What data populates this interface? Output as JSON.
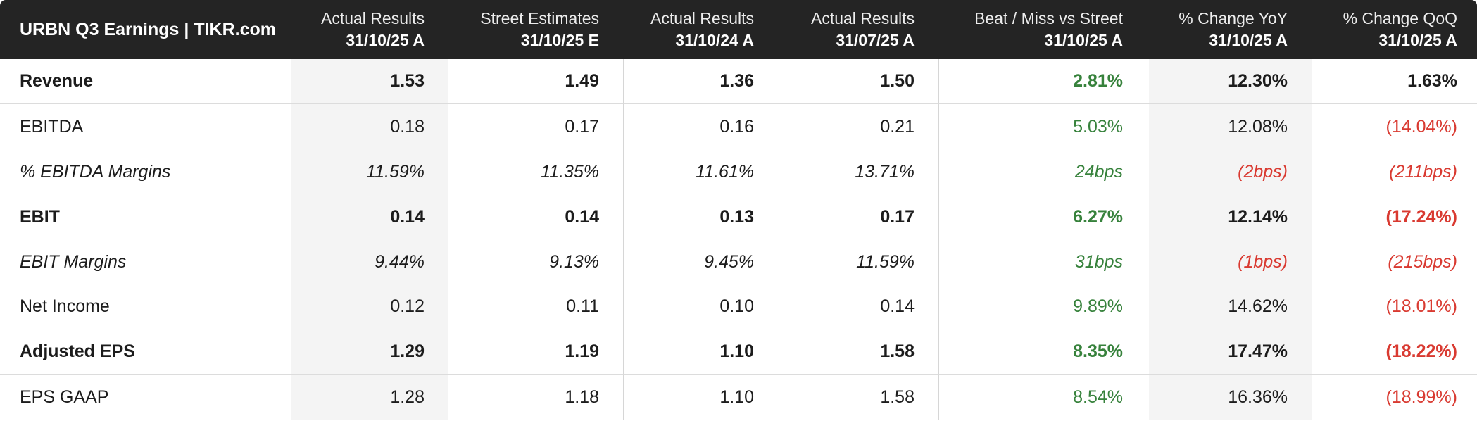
{
  "title": "URBN Q3 Earnings | TIKR.com",
  "columns": [
    {
      "label": "Actual Results",
      "date": "31/10/25 A"
    },
    {
      "label": "Street Estimates",
      "date": "31/10/25 E"
    },
    {
      "label": "Actual Results",
      "date": "31/10/24 A"
    },
    {
      "label": "Actual Results",
      "date": "31/07/25 A"
    },
    {
      "label": "Beat / Miss vs Street",
      "date": "31/10/25 A"
    },
    {
      "label": "% Change YoY",
      "date": "31/10/25 A"
    },
    {
      "label": "% Change QoQ",
      "date": "31/10/25 A"
    }
  ],
  "rows": [
    {
      "label": "Revenue",
      "style": "bold",
      "separator": true,
      "values": [
        {
          "t": "1.53",
          "cls": ""
        },
        {
          "t": "1.49",
          "cls": ""
        },
        {
          "t": "1.36",
          "cls": ""
        },
        {
          "t": "1.50",
          "cls": ""
        },
        {
          "t": "2.81%",
          "cls": "pos"
        },
        {
          "t": "12.30%",
          "cls": ""
        },
        {
          "t": "1.63%",
          "cls": ""
        }
      ]
    },
    {
      "label": "EBITDA",
      "style": "",
      "separator": false,
      "values": [
        {
          "t": "0.18",
          "cls": ""
        },
        {
          "t": "0.17",
          "cls": ""
        },
        {
          "t": "0.16",
          "cls": ""
        },
        {
          "t": "0.21",
          "cls": ""
        },
        {
          "t": "5.03%",
          "cls": "pos"
        },
        {
          "t": "12.08%",
          "cls": ""
        },
        {
          "t": "(14.04%)",
          "cls": "neg"
        }
      ]
    },
    {
      "label": "% EBITDA Margins",
      "style": "italic",
      "separator": false,
      "values": [
        {
          "t": "11.59%",
          "cls": ""
        },
        {
          "t": "11.35%",
          "cls": ""
        },
        {
          "t": "11.61%",
          "cls": ""
        },
        {
          "t": "13.71%",
          "cls": ""
        },
        {
          "t": "24bps",
          "cls": "pos"
        },
        {
          "t": "(2bps)",
          "cls": "neg"
        },
        {
          "t": "(211bps)",
          "cls": "neg"
        }
      ]
    },
    {
      "label": "EBIT",
      "style": "bold",
      "separator": false,
      "values": [
        {
          "t": "0.14",
          "cls": ""
        },
        {
          "t": "0.14",
          "cls": ""
        },
        {
          "t": "0.13",
          "cls": ""
        },
        {
          "t": "0.17",
          "cls": ""
        },
        {
          "t": "6.27%",
          "cls": "pos"
        },
        {
          "t": "12.14%",
          "cls": ""
        },
        {
          "t": "(17.24%)",
          "cls": "neg"
        }
      ]
    },
    {
      "label": "EBIT Margins",
      "style": "italic",
      "separator": false,
      "values": [
        {
          "t": "9.44%",
          "cls": ""
        },
        {
          "t": "9.13%",
          "cls": ""
        },
        {
          "t": "9.45%",
          "cls": ""
        },
        {
          "t": "11.59%",
          "cls": ""
        },
        {
          "t": "31bps",
          "cls": "pos"
        },
        {
          "t": "(1bps)",
          "cls": "neg"
        },
        {
          "t": "(215bps)",
          "cls": "neg"
        }
      ]
    },
    {
      "label": "Net Income",
      "style": "",
      "separator": true,
      "values": [
        {
          "t": "0.12",
          "cls": ""
        },
        {
          "t": "0.11",
          "cls": ""
        },
        {
          "t": "0.10",
          "cls": ""
        },
        {
          "t": "0.14",
          "cls": ""
        },
        {
          "t": "9.89%",
          "cls": "pos"
        },
        {
          "t": "14.62%",
          "cls": ""
        },
        {
          "t": "(18.01%)",
          "cls": "neg"
        }
      ]
    },
    {
      "label": "Adjusted EPS",
      "style": "bold",
      "separator": true,
      "values": [
        {
          "t": "1.29",
          "cls": ""
        },
        {
          "t": "1.19",
          "cls": ""
        },
        {
          "t": "1.10",
          "cls": ""
        },
        {
          "t": "1.58",
          "cls": ""
        },
        {
          "t": "8.35%",
          "cls": "pos"
        },
        {
          "t": "17.47%",
          "cls": ""
        },
        {
          "t": "(18.22%)",
          "cls": "neg"
        }
      ]
    },
    {
      "label": "EPS GAAP",
      "style": "",
      "separator": false,
      "values": [
        {
          "t": "1.28",
          "cls": ""
        },
        {
          "t": "1.18",
          "cls": ""
        },
        {
          "t": "1.10",
          "cls": ""
        },
        {
          "t": "1.58",
          "cls": ""
        },
        {
          "t": "8.54%",
          "cls": "pos"
        },
        {
          "t": "16.36%",
          "cls": ""
        },
        {
          "t": "(18.99%)",
          "cls": "neg"
        }
      ]
    }
  ],
  "colors": {
    "positive": "#37823c",
    "negative": "#d93a31",
    "header_bg": "#242424",
    "column_band": "#f4f4f4"
  }
}
